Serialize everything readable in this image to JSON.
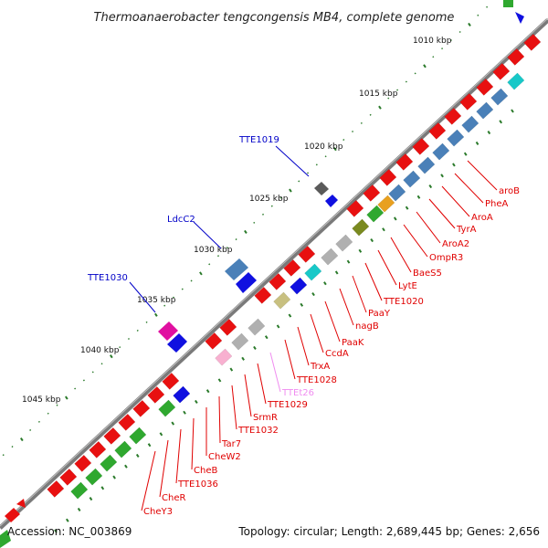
{
  "title": "Thermoanaerobacter tengcongensis MB4, complete genome",
  "footer": {
    "accession": "Accession: NC_003869",
    "summary": "Topology: circular; Length: 2,689,445 bp; Genes: 2,656"
  },
  "colors": {
    "red": "#e81010",
    "green": "#2fa82f",
    "blue": "#1010e0",
    "steel": "#4a80b8",
    "cyan": "#18c8c8",
    "grey": "#b0b0b0",
    "olive": "#7a8a20",
    "magenta": "#e010a0",
    "ring": "#808080",
    "label_red": "#e00000",
    "label_blue": "#0000c8",
    "label_pink": "#f08cf0"
  },
  "ticks": [
    "1010 kbp",
    "1015 kbp",
    "1020 kbp",
    "1025 kbp",
    "1030 kbp",
    "1035 kbp",
    "1040 kbp",
    "1045 kbp"
  ],
  "outer_labels": [
    "TTE1019",
    "LdcC2",
    "TTE1030"
  ],
  "inner_labels": [
    {
      "text": "aroB",
      "color": "red"
    },
    {
      "text": "PheA",
      "color": "red"
    },
    {
      "text": "AroA",
      "color": "red"
    },
    {
      "text": "TyrA",
      "color": "red"
    },
    {
      "text": "AroA2",
      "color": "red"
    },
    {
      "text": "OmpR3",
      "color": "red"
    },
    {
      "text": "BaeS5",
      "color": "red"
    },
    {
      "text": "LytE",
      "color": "red"
    },
    {
      "text": "TTE1020",
      "color": "red"
    },
    {
      "text": "PaaY",
      "color": "red"
    },
    {
      "text": "nagB",
      "color": "red"
    },
    {
      "text": "PaaK",
      "color": "red"
    },
    {
      "text": "CcdA",
      "color": "red"
    },
    {
      "text": "TrxA",
      "color": "red"
    },
    {
      "text": "TTE1028",
      "color": "red"
    },
    {
      "text": "TTEt26",
      "color": "pink"
    },
    {
      "text": "TTE1029",
      "color": "red"
    },
    {
      "text": "SrmR",
      "color": "red"
    },
    {
      "text": "TTE1032",
      "color": "red"
    },
    {
      "text": "Tar7",
      "color": "red"
    },
    {
      "text": "CheW2",
      "color": "red"
    },
    {
      "text": "CheB",
      "color": "red"
    },
    {
      "text": "TTE1036",
      "color": "red"
    },
    {
      "text": "CheR",
      "color": "red"
    },
    {
      "text": "CheY3",
      "color": "red"
    }
  ]
}
